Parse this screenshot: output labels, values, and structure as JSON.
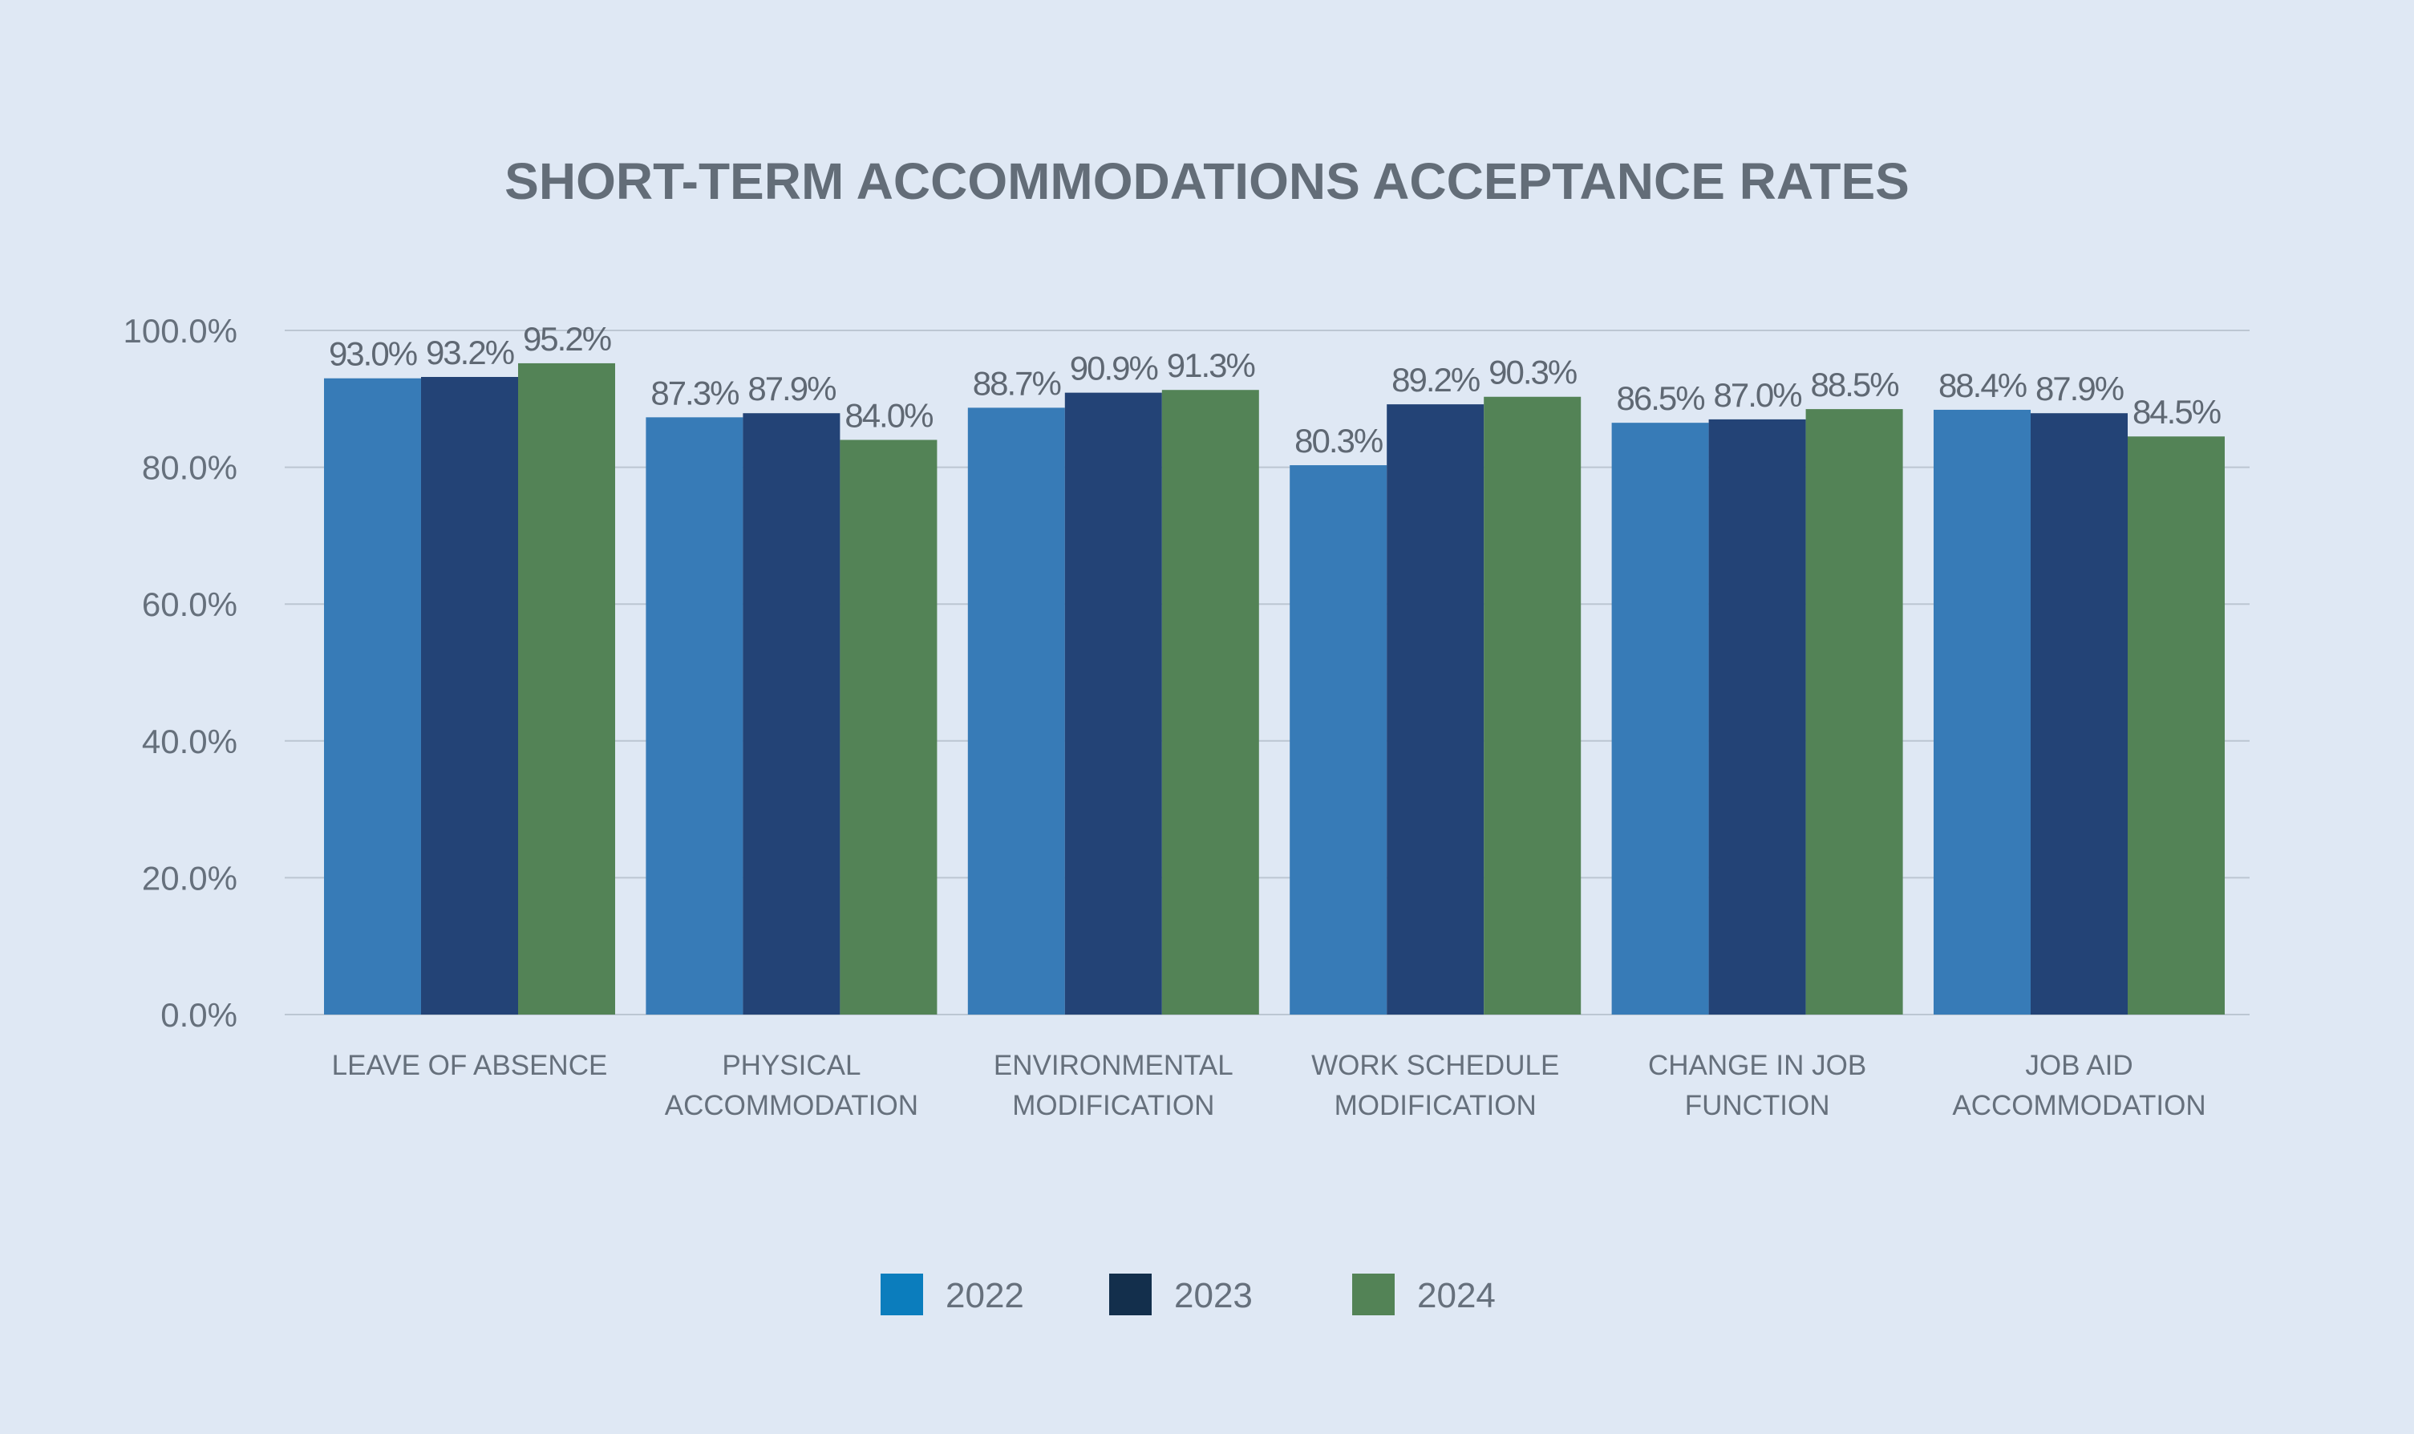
{
  "chart_data": {
    "type": "bar",
    "title": "SHORT-TERM ACCOMMODATIONS ACCEPTANCE RATES",
    "categories": [
      [
        "LEAVE OF ABSENCE"
      ],
      [
        "PHYSICAL",
        "ACCOMMODATION"
      ],
      [
        "ENVIRONMENTAL",
        "MODIFICATION"
      ],
      [
        "WORK SCHEDULE",
        "MODIFICATION"
      ],
      [
        "CHANGE IN JOB",
        "FUNCTION"
      ],
      [
        "JOB AID",
        "ACCOMMODATION"
      ]
    ],
    "series": [
      {
        "name": "2022",
        "color": "#377bb7",
        "legend_color": "#0b7dbd",
        "values": [
          93.0,
          87.3,
          88.7,
          80.3,
          86.5,
          88.4
        ],
        "labels": [
          "93.0%",
          "87.3%",
          "88.7%",
          "80.3%",
          "86.5%",
          "88.4%"
        ]
      },
      {
        "name": "2023",
        "color": "#234376",
        "legend_color": "#132f4c",
        "values": [
          93.2,
          87.9,
          90.9,
          89.2,
          87.0,
          87.9
        ],
        "labels": [
          "93.2%",
          "87.9%",
          "90.9%",
          "89.2%",
          "87.0%",
          "87.9%"
        ]
      },
      {
        "name": "2024",
        "color": "#538356",
        "legend_color": "#538356",
        "values": [
          95.2,
          84.0,
          91.3,
          90.3,
          88.5,
          84.5
        ],
        "labels": [
          "95.2%",
          "84.0%",
          "91.3%",
          "90.3%",
          "88.5%",
          "84.5%"
        ]
      }
    ],
    "ylim": [
      0,
      100
    ],
    "yticks": [
      0,
      20,
      40,
      60,
      80,
      100
    ],
    "ytick_labels": [
      "0.0%",
      "20.0%",
      "40.0%",
      "60.0%",
      "80.0%",
      "100.0%"
    ],
    "grid": true,
    "legend_position": "bottom-center"
  }
}
